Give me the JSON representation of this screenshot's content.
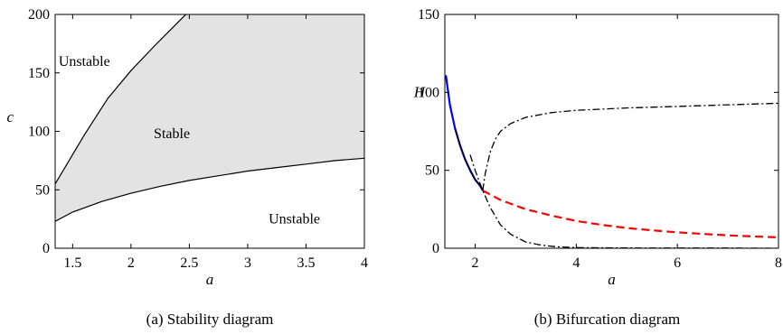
{
  "chart_data": [
    {
      "type": "area",
      "caption": "(a) Stability diagram",
      "xlabel": "a",
      "ylabel": "c",
      "xlim": [
        1.35,
        4
      ],
      "ylim": [
        0,
        200
      ],
      "xticks": [
        1.5,
        2,
        2.5,
        3,
        3.5,
        4
      ],
      "xtick_labels": [
        "1.5",
        "2",
        "2.5",
        "3",
        "3.5",
        "4"
      ],
      "yticks": [
        0,
        50,
        100,
        150,
        200
      ],
      "ytick_labels": [
        "0",
        "50",
        "100",
        "150",
        "200"
      ],
      "series": [
        {
          "role": "upper-boundary",
          "x": [
            1.35,
            1.6,
            1.8,
            2.0,
            2.2,
            2.4,
            2.47
          ],
          "y": [
            55,
            97,
            128,
            152,
            173,
            193,
            200
          ]
        },
        {
          "role": "lower-boundary",
          "x": [
            1.35,
            1.5,
            1.75,
            2.0,
            2.25,
            2.5,
            2.75,
            3.0,
            3.25,
            3.5,
            3.75,
            4.0
          ],
          "y": [
            23,
            31,
            40,
            47,
            53,
            58,
            62,
            66,
            69,
            72,
            75,
            77
          ]
        }
      ],
      "regions": [
        {
          "label": "Unstable",
          "anchor": [
            1.6,
            160
          ]
        },
        {
          "label": "Stable",
          "anchor": [
            2.35,
            98
          ]
        },
        {
          "label": "Unstable",
          "anchor": [
            3.4,
            25
          ]
        }
      ],
      "fill_color": "#e3e3e3",
      "line_color": "#000000"
    },
    {
      "type": "line",
      "caption": "(b) Bifurcation diagram",
      "xlabel": "a",
      "ylabel": "H",
      "xlim": [
        1.4,
        8
      ],
      "ylim": [
        0,
        150
      ],
      "xticks": [
        2,
        4,
        6,
        8
      ],
      "xtick_labels": [
        "2",
        "4",
        "6",
        "8"
      ],
      "yticks": [
        0,
        50,
        100,
        150
      ],
      "ytick_labels": [
        "0",
        "50",
        "100",
        "150"
      ],
      "series": [
        {
          "style": "solid",
          "color": "#0000ff",
          "x": [
            1.42,
            1.5,
            1.6,
            1.7,
            1.8,
            1.9,
            2.0,
            2.1,
            2.15
          ],
          "y": [
            111,
            92,
            77,
            66,
            57,
            50,
            44,
            40,
            37
          ]
        },
        {
          "style": "solid",
          "color": "#000000",
          "x": [
            1.6,
            1.7,
            1.8,
            1.9,
            2.0,
            2.1,
            2.15
          ],
          "y": [
            77,
            66,
            57,
            50,
            44,
            40,
            37
          ]
        },
        {
          "style": "dashed",
          "color": "#ff0000",
          "x": [
            2.15,
            2.5,
            3.0,
            3.5,
            4.0,
            4.5,
            5.0,
            5.5,
            6.0,
            6.5,
            7.0,
            7.5,
            8.0
          ],
          "y": [
            37,
            31,
            25,
            21,
            17.5,
            15,
            13,
            11.5,
            10.2,
            9.2,
            8.3,
            7.6,
            7
          ]
        },
        {
          "style": "dashdot",
          "color": "#000000",
          "x": [
            2.15,
            2.2,
            2.3,
            2.4,
            2.5,
            2.7,
            3.0,
            3.5,
            4.0,
            5.0,
            6.0,
            7.0,
            8.0
          ],
          "y": [
            37,
            48,
            62,
            70,
            75,
            80,
            84,
            87,
            88.5,
            90,
            91,
            92,
            93
          ]
        },
        {
          "style": "dashdot",
          "color": "#000000",
          "x": [
            1.9,
            2.0,
            2.15,
            2.3,
            2.5,
            2.7,
            3.0,
            3.3,
            3.6,
            4.0,
            5.0,
            6.0,
            7.0,
            8.0
          ],
          "y": [
            60,
            50,
            37,
            26,
            15,
            9,
            4,
            2,
            1,
            0.4,
            0.2,
            0.1,
            0.1,
            0
          ]
        }
      ]
    }
  ]
}
